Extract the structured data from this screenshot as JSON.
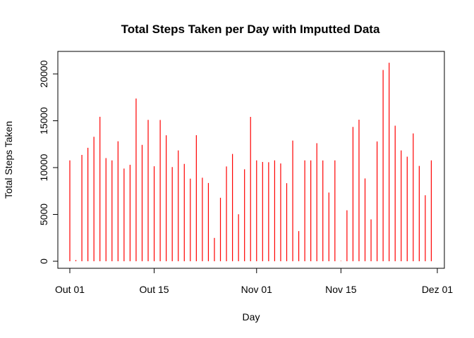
{
  "chart_data": {
    "type": "bar",
    "style": "histogram-lines",
    "title": "Total Steps Taken per Day with Imputted Data",
    "xlabel": "Day",
    "ylabel": "Total Steps Taken",
    "bar_color": "#ff0000",
    "grid": false,
    "xlim": [
      "2012-09-30",
      "2012-12-01"
    ],
    "ylim": [
      0,
      21194
    ],
    "x_ticks": [
      {
        "date": "2012-10-01",
        "label": "Out 01"
      },
      {
        "date": "2012-10-15",
        "label": "Out 15"
      },
      {
        "date": "2012-11-01",
        "label": "Nov 01"
      },
      {
        "date": "2012-11-15",
        "label": "Nov 15"
      },
      {
        "date": "2012-12-01",
        "label": "Dez 01"
      }
    ],
    "y_ticks": [
      {
        "value": 0,
        "label": "0"
      },
      {
        "value": 5000,
        "label": "5000"
      },
      {
        "value": 10000,
        "label": "10000"
      },
      {
        "value": 15000,
        "label": "15000"
      },
      {
        "value": 20000,
        "label": "20000"
      }
    ],
    "series": [
      {
        "x": [
          "2012-10-01",
          "2012-10-02",
          "2012-10-03",
          "2012-10-04",
          "2012-10-05",
          "2012-10-06",
          "2012-10-07",
          "2012-10-08",
          "2012-10-09",
          "2012-10-10",
          "2012-10-11",
          "2012-10-12",
          "2012-10-13",
          "2012-10-14",
          "2012-10-15",
          "2012-10-16",
          "2012-10-17",
          "2012-10-18",
          "2012-10-19",
          "2012-10-20",
          "2012-10-21",
          "2012-10-22",
          "2012-10-23",
          "2012-10-24",
          "2012-10-25",
          "2012-10-26",
          "2012-10-27",
          "2012-10-28",
          "2012-10-29",
          "2012-10-30",
          "2012-10-31",
          "2012-11-01",
          "2012-11-02",
          "2012-11-03",
          "2012-11-04",
          "2012-11-05",
          "2012-11-06",
          "2012-11-07",
          "2012-11-08",
          "2012-11-09",
          "2012-11-10",
          "2012-11-11",
          "2012-11-12",
          "2012-11-13",
          "2012-11-14",
          "2012-11-15",
          "2012-11-16",
          "2012-11-17",
          "2012-11-18",
          "2012-11-19",
          "2012-11-20",
          "2012-11-21",
          "2012-11-22",
          "2012-11-23",
          "2012-11-24",
          "2012-11-25",
          "2012-11-26",
          "2012-11-27",
          "2012-11-28",
          "2012-11-29",
          "2012-11-30"
        ],
        "values": [
          10766,
          126,
          11352,
          12116,
          13294,
          15420,
          11015,
          10766,
          12811,
          9900,
          10304,
          17382,
          12426,
          15098,
          10139,
          15084,
          13452,
          10056,
          11829,
          10395,
          8821,
          13460,
          8918,
          8355,
          2492,
          6778,
          10119,
          11458,
          5018,
          9819,
          15414,
          10766,
          10600,
          10571,
          10766,
          10439,
          8334,
          12883,
          3219,
          10766,
          10766,
          12608,
          10765,
          7336,
          10766,
          41,
          5441,
          14339,
          15110,
          8841,
          4472,
          12787,
          20427,
          21194,
          14478,
          11834,
          11162,
          13646,
          10183,
          7047,
          10766
        ]
      }
    ]
  }
}
